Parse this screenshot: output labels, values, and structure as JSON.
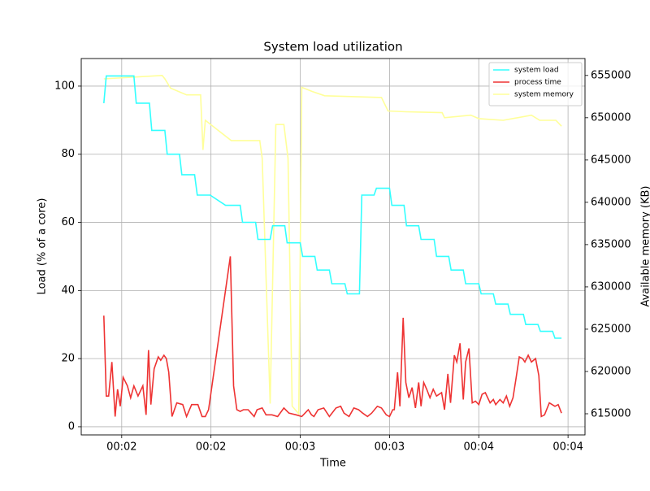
{
  "chart_data": {
    "type": "line",
    "title": "System load utilization",
    "xlabel": "Time",
    "ylabel": "Load (% of a core)",
    "y2label": "Available memory (KB)",
    "xlim": [
      106.4,
      275.7
    ],
    "ylim": [
      -2.4,
      108.1
    ],
    "y2lim": [
      612500,
      657000
    ],
    "xticks": [
      {
        "value": 120,
        "label": "00:02"
      },
      {
        "value": 150,
        "label": "00:02"
      },
      {
        "value": 180,
        "label": "00:03"
      },
      {
        "value": 210,
        "label": "00:03"
      },
      {
        "value": 240,
        "label": "00:04"
      },
      {
        "value": 270,
        "label": "00:04"
      }
    ],
    "yticks": [
      0,
      20,
      40,
      60,
      80,
      100
    ],
    "y2ticks": [
      615000,
      620000,
      625000,
      630000,
      635000,
      640000,
      645000,
      650000,
      655000
    ],
    "grid": true,
    "legend": "upper right",
    "series": [
      {
        "name": "system load",
        "color": "#33ffff",
        "x": [
          114.0,
          114.8,
          124.1,
          124.9,
          129.3,
          130.1,
          134.5,
          135.3,
          139.4,
          140.2,
          144.5,
          145.4,
          149.7,
          154.9,
          159.8,
          160.6,
          165.0,
          165.8,
          169.9,
          170.7,
          174.8,
          175.6,
          180.0,
          180.8,
          184.9,
          185.7,
          189.8,
          190.6,
          195.0,
          195.8,
          199.9,
          200.7,
          204.8,
          205.6,
          210.0,
          210.8,
          214.9,
          215.7,
          219.8,
          220.6,
          225.0,
          225.8,
          229.9,
          230.7,
          234.8,
          235.6,
          240.0,
          240.8,
          244.9,
          245.7,
          249.8,
          250.6,
          255.0,
          255.8,
          259.9,
          260.7,
          264.8,
          265.6,
          267.8
        ],
        "values": [
          95,
          103,
          103,
          95,
          95,
          87,
          87,
          80,
          80,
          74,
          74,
          68,
          68,
          65,
          65,
          60,
          60,
          55,
          55,
          59,
          59,
          54,
          54,
          50,
          50,
          46,
          46,
          42,
          42,
          39,
          39,
          68,
          68,
          70,
          70,
          65,
          65,
          59,
          59,
          55,
          55,
          50,
          50,
          46,
          46,
          42,
          42,
          39,
          39,
          36,
          36,
          33,
          33,
          30,
          30,
          28,
          28,
          26,
          26
        ]
      },
      {
        "name": "process time",
        "color": "#ee3333",
        "x": [
          114.0,
          114.8,
          115.6,
          116.7,
          117.8,
          118.6,
          119.5,
          120.5,
          121.9,
          123.0,
          124.1,
          125.5,
          127.1,
          128.2,
          129.0,
          129.8,
          130.9,
          132.3,
          133.1,
          134.2,
          135.0,
          135.8,
          136.9,
          138.5,
          140.5,
          141.8,
          143.5,
          145.6,
          147.0,
          148.1,
          149.2,
          156.5,
          157.6,
          158.7,
          159.8,
          160.9,
          162.5,
          164.5,
          165.5,
          167.2,
          168.5,
          170.5,
          172.4,
          174.5,
          176.2,
          178.6,
          180.5,
          182.7,
          183.8,
          184.6,
          186.0,
          187.9,
          189.8,
          192.0,
          193.6,
          194.7,
          196.4,
          198.0,
          199.6,
          201.0,
          202.6,
          204.0,
          205.9,
          207.3,
          208.9,
          210.0,
          211.1,
          211.6,
          212.7,
          213.5,
          214.6,
          215.5,
          216.5,
          217.6,
          218.7,
          219.8,
          220.6,
          221.5,
          222.5,
          223.6,
          224.7,
          225.8,
          227.5,
          228.5,
          229.6,
          230.5,
          231.8,
          232.6,
          233.7,
          234.8,
          235.6,
          236.7,
          237.8,
          238.9,
          240.0,
          241.1,
          242.2,
          243.8,
          244.9,
          245.7,
          247.1,
          248.2,
          249.3,
          250.4,
          251.5,
          252.5,
          253.6,
          254.7,
          255.5,
          256.6,
          257.7,
          259.1,
          260.2,
          261.0,
          262.1,
          263.7,
          265.6,
          266.7,
          267.8
        ],
        "values": [
          32.6,
          9,
          9,
          19,
          3,
          11,
          6,
          14.5,
          12,
          8.5,
          12,
          9,
          12,
          3.5,
          22.5,
          6.5,
          17,
          20.5,
          19.5,
          21,
          20,
          16,
          3,
          7,
          6.5,
          3,
          6.5,
          6.5,
          3,
          3,
          5,
          50,
          12,
          5,
          4.5,
          5,
          5,
          3,
          5,
          5.5,
          3.5,
          3.5,
          3,
          5.5,
          4,
          3.5,
          3,
          5,
          3.5,
          3,
          5,
          5.5,
          3,
          5.5,
          6,
          4,
          3,
          5.5,
          5,
          4,
          3,
          4,
          6,
          5.5,
          3.5,
          3,
          5,
          5,
          16,
          6,
          32,
          13,
          8.5,
          11.5,
          5.5,
          13,
          6,
          13,
          11,
          8.5,
          11,
          9,
          10,
          5,
          15.5,
          7,
          21,
          19,
          24.5,
          8,
          19,
          23,
          7,
          7.5,
          6.5,
          9.5,
          10,
          7,
          8,
          6.5,
          8,
          7,
          9,
          6,
          8.5,
          14,
          20.5,
          20,
          19,
          21,
          19,
          20,
          15,
          3,
          3.5,
          7,
          6,
          6.5,
          4
        ]
      },
      {
        "name": "system memory",
        "color": "#ffff99",
        "axis": "y2",
        "x": [
          114.0,
          133.6,
          134.5,
          136.4,
          141.8,
          146.5,
          147.3,
          148.1,
          156.8,
          166.4,
          167.2,
          169.9,
          171.8,
          174.5,
          175.9,
          177.3,
          179.5,
          180.5,
          184.1,
          188.2,
          207.3,
          209.5,
          215.5,
          227.7,
          228.5,
          237.3,
          240.0,
          248.2,
          257.7,
          260.5,
          265.9,
          267.8
        ],
        "values": [
          654600,
          655000,
          654600,
          653500,
          652700,
          652700,
          646200,
          649700,
          647300,
          647300,
          645200,
          616200,
          649200,
          649200,
          645200,
          615900,
          615000,
          653600,
          653100,
          652600,
          652400,
          650800,
          650700,
          650600,
          650000,
          650300,
          649900,
          649700,
          650300,
          649700,
          649700,
          649000
        ]
      }
    ]
  }
}
